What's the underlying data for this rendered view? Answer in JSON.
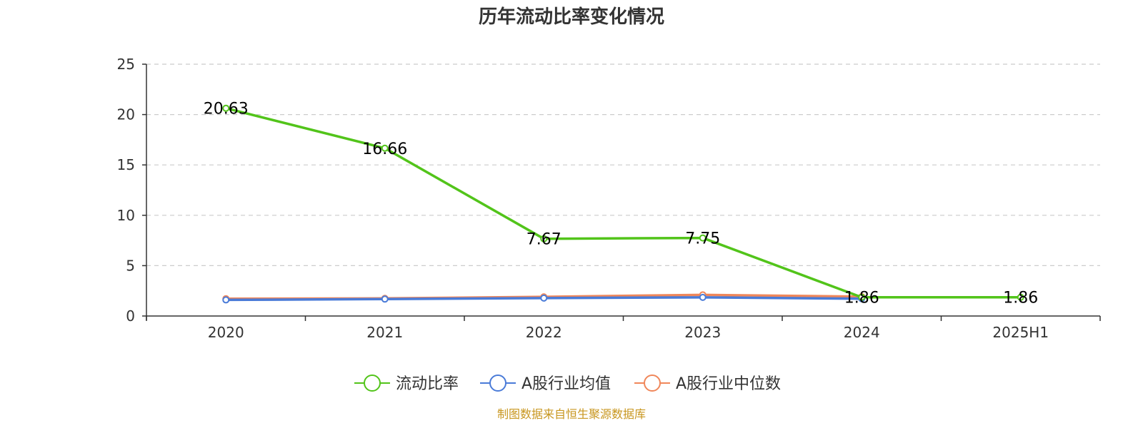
{
  "chart_data": {
    "type": "line",
    "title": "历年流动比率变化情况",
    "categories": [
      "2020",
      "2021",
      "2022",
      "2023",
      "2024",
      "2025H1"
    ],
    "ylim": [
      0,
      25
    ],
    "yticks": [
      "0",
      "5",
      "10",
      "15",
      "20",
      "25"
    ],
    "grid": true,
    "legend_position": "bottom",
    "series": [
      {
        "name": "流动比率",
        "color": "#52c41a",
        "values": [
          20.63,
          16.66,
          7.67,
          7.75,
          1.86,
          1.86
        ],
        "labels": [
          "20.63",
          "16.66",
          "7.67",
          "7.75",
          "1.86",
          "1.86"
        ]
      },
      {
        "name": "A股行业均值",
        "color": "#4a7bd8",
        "values": [
          1.6,
          1.68,
          1.78,
          1.85,
          1.72,
          null
        ]
      },
      {
        "name": "A股行业中位数",
        "color": "#f0875a",
        "values": [
          1.72,
          1.75,
          1.9,
          2.1,
          1.92,
          null
        ]
      }
    ],
    "source": "制图数据来自恒生聚源数据库",
    "source_color": "#c8961e"
  }
}
